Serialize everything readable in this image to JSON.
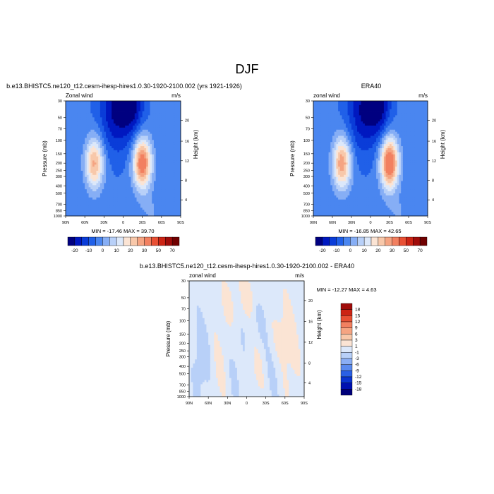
{
  "figure": {
    "title": "DJF"
  },
  "colors": {
    "main_scale": [
      "#000080",
      "#0018c0",
      "#0a3cd8",
      "#2060e8",
      "#4a86f0",
      "#86aef5",
      "#b8d0f8",
      "#dce8fa",
      "#fbe4d4",
      "#f8c8aa",
      "#f5a482",
      "#f28060",
      "#e85034",
      "#cc2414",
      "#a00c0a",
      "#700000"
    ],
    "diff_scale": [
      "#00007a",
      "#0010b0",
      "#0a34d0",
      "#2a60e4",
      "#5a8aee",
      "#8aaef4",
      "#b8d0f8",
      "#dce8fa",
      "#fbe4d4",
      "#f8c8aa",
      "#f5a482",
      "#f28060",
      "#e85034",
      "#cc2414",
      "#a00c0a",
      "#700000"
    ]
  },
  "chart_data": [
    {
      "type": "heatmap",
      "title": "b.e13.BHISTC5.ne120_t12.cesm-ihesp-hires1.0.30-1920-2100.002 (yrs 1921-1926)",
      "left_label": "Zonal wind",
      "right_label": "m/s",
      "xlabel": "",
      "ylabel": "Pressure (mb)",
      "ylabel_right": "Height (km)",
      "x_ticks": [
        "90N",
        "60N",
        "30N",
        "0",
        "30S",
        "60S",
        "90S"
      ],
      "y_ticks": [
        "30",
        "50",
        "70",
        "100",
        "150",
        "200",
        "250",
        "300",
        "400",
        "500",
        "700",
        "850",
        "1000"
      ],
      "y_right_ticks": [
        "4",
        "8",
        "12",
        "16",
        "20"
      ],
      "min": -17.46,
      "max": 39.7,
      "stats_text": "MIN = -17.46   MAX =  39.70",
      "colorbar_labels": [
        "-20",
        "-10",
        "0",
        "10",
        "20",
        "30",
        "50",
        "70"
      ],
      "jets": [
        {
          "lat": -30,
          "p": 200,
          "peak": 39.7
        },
        {
          "lat": 45,
          "p": 200,
          "peak": 30
        },
        {
          "lat": 10,
          "p": 40,
          "peak": -17.46
        }
      ]
    },
    {
      "type": "heatmap",
      "title": "ERA40",
      "left_label": "zonal wind",
      "right_label": "m/s",
      "xlabel": "",
      "ylabel": "Pressure (mb)",
      "ylabel_right": "Height (km)",
      "x_ticks": [
        "90N",
        "60N",
        "30N",
        "0",
        "30S",
        "60S",
        "90S"
      ],
      "y_ticks": [
        "30",
        "50",
        "70",
        "100",
        "150",
        "200",
        "250",
        "300",
        "400",
        "500",
        "700",
        "850",
        "1000"
      ],
      "y_right_ticks": [
        "4",
        "8",
        "12",
        "16",
        "20"
      ],
      "min": -16.85,
      "max": 42.65,
      "stats_text": "MIN = -16.85   MAX =  42.65",
      "colorbar_labels": [
        "-20",
        "-10",
        "0",
        "10",
        "20",
        "30",
        "50",
        "70"
      ],
      "jets": [
        {
          "lat": -30,
          "p": 200,
          "peak": 42.65
        },
        {
          "lat": 45,
          "p": 200,
          "peak": 33
        },
        {
          "lat": 10,
          "p": 40,
          "peak": -16.85
        }
      ]
    },
    {
      "type": "heatmap",
      "title": "b.e13.BHISTC5.ne120_t12.cesm-ihesp-hires1.0.30-1920-2100.002 - ERA40",
      "left_label": "zonal wind",
      "right_label": "m/s",
      "xlabel": "",
      "ylabel": "Pressure (mb)",
      "ylabel_right": "Height (km)",
      "x_ticks": [
        "90N",
        "60N",
        "30N",
        "0",
        "30S",
        "60S",
        "90S"
      ],
      "y_ticks": [
        "30",
        "50",
        "70",
        "100",
        "150",
        "200",
        "250",
        "300",
        "400",
        "500",
        "700",
        "850",
        "1000"
      ],
      "y_right_ticks": [
        "4",
        "8",
        "12",
        "16",
        "20"
      ],
      "min": -12.27,
      "max": 4.63,
      "stats_text": "MIN = -12.27   MAX =   4.63",
      "colorbar_labels": [
        "18",
        "15",
        "12",
        "9",
        "6",
        "3",
        "1",
        "-1",
        "-3",
        "-6",
        "-9",
        "-12",
        "-15",
        "-18"
      ]
    }
  ]
}
